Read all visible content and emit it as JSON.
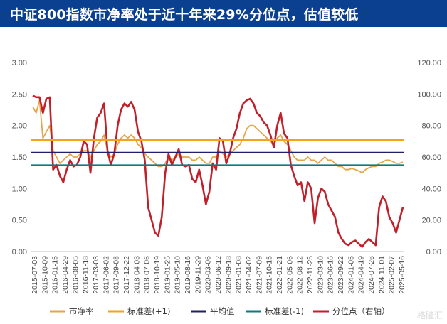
{
  "title": "中证800指数市净率处于近十年来29%分位点，估值较低",
  "watermark": "格隆汇",
  "chart_data": {
    "type": "line",
    "title": "中证800指数市净率处于近十年来29%分位点，估值较低",
    "y_left": {
      "min": 0,
      "max": 3,
      "ticks": [
        "0.00",
        "0.50",
        "1.00",
        "1.50",
        "2.00",
        "2.50",
        "3.00"
      ]
    },
    "y_right": {
      "min": 0,
      "max": 120,
      "ticks": [
        "0.00",
        "20.00",
        "40.00",
        "60.00",
        "80.00",
        "100.00",
        "120.00"
      ]
    },
    "x_ticks": [
      "2015-07-03",
      "2015-10-09",
      "2016-01-15",
      "2016-04-29",
      "2016-08-05",
      "2016-11-18",
      "2017-03-03",
      "2017-06-02",
      "2017-09-08",
      "2017-12-22",
      "2018-04-03",
      "2018-07-06",
      "2018-10-19",
      "2019-01-25",
      "2019-05-10",
      "2019-08-16",
      "2019-11-29",
      "2020-03-06",
      "2020-06-12",
      "2020-09-18",
      "2021-01-08",
      "2021-04-02",
      "2021-07-09",
      "2021-10-15",
      "2022-01-21",
      "2022-05-06",
      "2022-08-12",
      "2022-11-25",
      "2023-03-10",
      "2023-06-16",
      "2023-09-22",
      "2024-01-05",
      "2024-04-19",
      "2024-07-26",
      "2024-11-01",
      "2025-02-07",
      "2025-05-16"
    ],
    "legend_position": "bottom",
    "series": [
      {
        "name": "市净率",
        "axis": "left",
        "color": "#e3a64b",
        "values": [
          2.3,
          2.2,
          2.4,
          1.8,
          1.9,
          2.0,
          1.6,
          1.5,
          1.4,
          1.45,
          1.5,
          1.55,
          1.5,
          1.5,
          1.55,
          1.6,
          1.6,
          1.5,
          1.6,
          1.7,
          1.75,
          1.85,
          1.6,
          1.5,
          1.55,
          1.7,
          1.8,
          1.85,
          1.8,
          1.85,
          1.8,
          1.7,
          1.65,
          1.55,
          1.5,
          1.45,
          1.4,
          1.35,
          1.35,
          1.4,
          1.5,
          1.45,
          1.5,
          1.55,
          1.5,
          1.5,
          1.5,
          1.45,
          1.45,
          1.5,
          1.45,
          1.4,
          1.4,
          1.5,
          1.5,
          1.6,
          1.55,
          1.5,
          1.55,
          1.6,
          1.65,
          1.7,
          1.8,
          1.95,
          2.0,
          2.0,
          1.95,
          1.9,
          1.85,
          1.8,
          1.75,
          1.7,
          1.8,
          1.85,
          1.75,
          1.7,
          1.6,
          1.5,
          1.45,
          1.45,
          1.45,
          1.5,
          1.45,
          1.45,
          1.4,
          1.45,
          1.5,
          1.45,
          1.45,
          1.4,
          1.35,
          1.35,
          1.3,
          1.3,
          1.32,
          1.3,
          1.28,
          1.25,
          1.3,
          1.33,
          1.35,
          1.35,
          1.4,
          1.42,
          1.45,
          1.45,
          1.43,
          1.4,
          1.4,
          1.42
        ]
      },
      {
        "name": "标准差(+1)",
        "axis": "left",
        "color": "#f5a31a",
        "constant": 1.77
      },
      {
        "name": "平均值",
        "axis": "left",
        "color": "#1f1f6e",
        "constant": 1.57
      },
      {
        "name": "标准差(-1)",
        "axis": "left",
        "color": "#0e7a7a",
        "constant": 1.37
      },
      {
        "name": "分位点（右轴）",
        "axis": "right",
        "color": "#c0202a",
        "values": [
          99,
          98,
          98,
          88,
          97,
          98,
          52,
          55,
          48,
          44,
          52,
          58,
          54,
          55,
          60,
          70,
          68,
          50,
          72,
          85,
          88,
          94,
          64,
          55,
          62,
          80,
          90,
          94,
          92,
          95,
          90,
          76,
          70,
          58,
          28,
          20,
          12,
          10,
          22,
          50,
          62,
          55,
          60,
          65,
          55,
          54,
          55,
          46,
          44,
          52,
          42,
          30,
          38,
          56,
          52,
          72,
          70,
          56,
          62,
          72,
          78,
          88,
          94,
          96,
          97,
          94,
          88,
          86,
          82,
          80,
          74,
          66,
          80,
          88,
          75,
          72,
          55,
          48,
          42,
          44,
          32,
          44,
          40,
          18,
          34,
          40,
          38,
          30,
          26,
          22,
          12,
          8,
          5,
          4,
          6,
          7,
          5,
          3,
          6,
          8,
          6,
          4,
          28,
          35,
          32,
          22,
          18,
          12,
          20,
          28
        ]
      }
    ],
    "legend": [
      "市净率",
      "标准差(+1)",
      "平均值",
      "标准差(-1)",
      "分位点（右轴）"
    ]
  }
}
